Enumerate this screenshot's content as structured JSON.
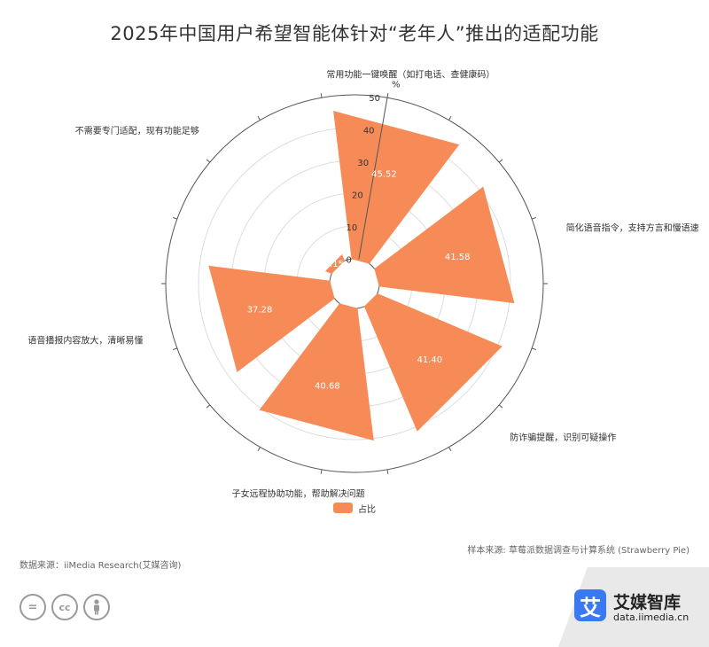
{
  "chart_data": {
    "type": "polar-bar",
    "title": "2025年中国用户希望智能体针对“老年人”推出的适配功能",
    "unit": "%",
    "categories": [
      "常用功能一键唤醒（如打电话、查健康码）",
      "简化语音指令，支持方言和慢语速",
      "防诈骗提醒，识别可疑操作",
      "子女远程协助功能，帮助解决问题",
      "语音播报内容放大，清晰易懂",
      "不需要专门适配，现有功能足够"
    ],
    "series": [
      {
        "name": "占比",
        "values": [
          45.52,
          41.58,
          41.4,
          40.68,
          37.28,
          2.15
        ]
      }
    ],
    "value_labels": [
      "45.52",
      "41.58",
      "41.40",
      "40.68",
      "37.28",
      "2.15"
    ],
    "radial_ticks": [
      "0",
      "10",
      "20",
      "30",
      "40",
      "50"
    ],
    "radial_range": [
      0,
      50
    ],
    "grid": true,
    "legend_position": "bottom",
    "colors": {
      "bar": "#f68b58",
      "grid": "#dddddd",
      "axis": "#555555"
    }
  },
  "footer": {
    "sample_source": "样本来源: 草莓派数据调查与计算系统 (Strawberry Pie)",
    "data_source": "数据来源：iiMedia Research(艾媒咨询)"
  },
  "license_icons": [
    "equals-icon",
    "cc-icon",
    "person-icon"
  ],
  "brand": {
    "logo_char": "艾",
    "name": "艾媒智库",
    "url": "data.iimedia.cn",
    "color": "#3b79f3"
  }
}
